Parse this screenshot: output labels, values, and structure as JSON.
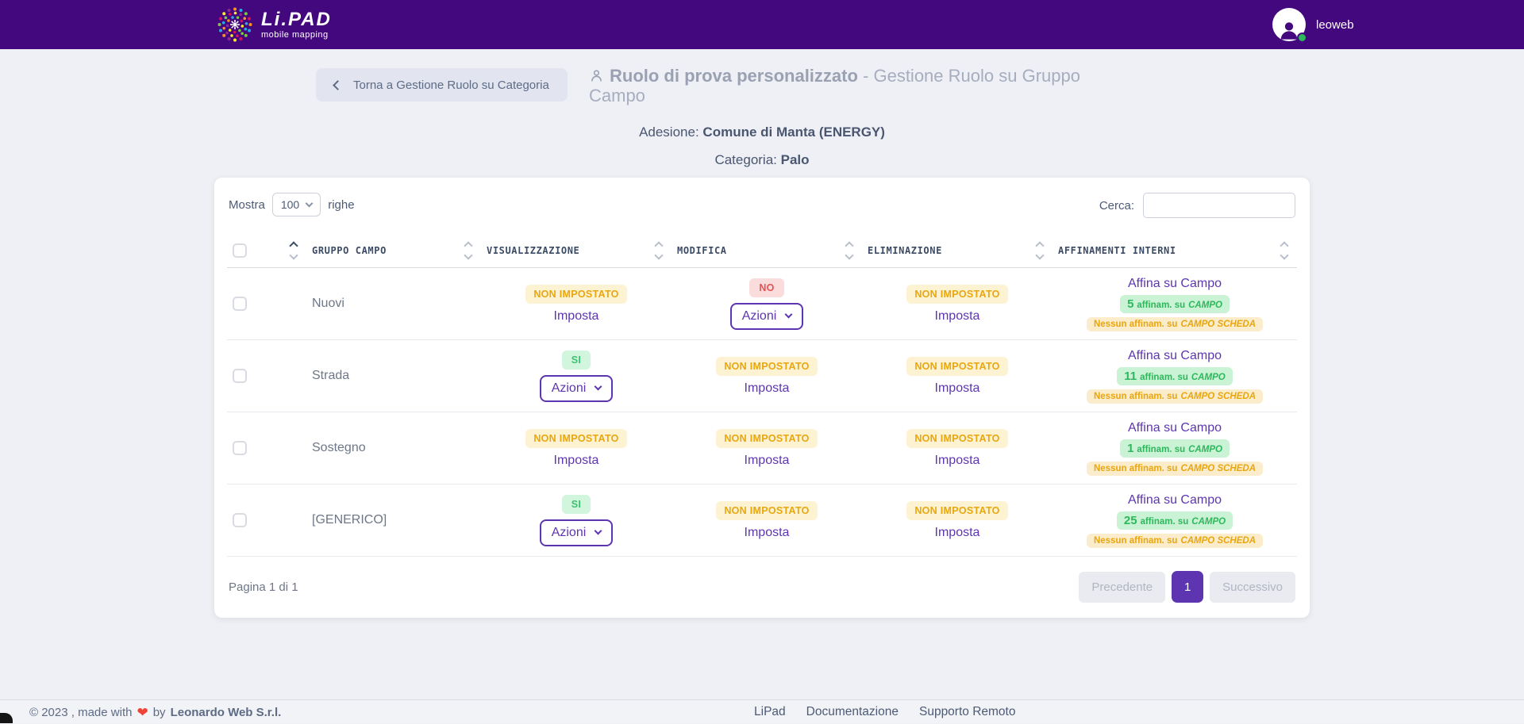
{
  "navbar": {
    "logo_title": "Li.PAD",
    "logo_subtitle": "mobile mapping",
    "username": "leoweb"
  },
  "page": {
    "back_button": "Torna a Gestione Ruolo su Categoria",
    "title_role": "Ruolo di prova personalizzato",
    "title_rest": " - Gestione Ruolo su Gruppo Campo",
    "adesione_label": "Adesione:",
    "adesione_value": "Comune di Manta (ENERGY)",
    "categoria_label": "Categoria:",
    "categoria_value": "Palo"
  },
  "table": {
    "show_label": "Mostra",
    "page_size": "100",
    "rows_label": "righe",
    "search_label": "Cerca:",
    "search_value": "",
    "columns": {
      "gruppo": "GRUPPO CAMPO",
      "visualizzazione": "VISUALIZZAZIONE",
      "modifica": "MODIFICA",
      "eliminazione": "ELIMINAZIONE",
      "affinamenti": "AFFINAMENTI INTERNI"
    },
    "labels": {
      "affinam_link": "Affina su Campo",
      "affinam_suffix": "affinam. su",
      "affinam_target": "CAMPO",
      "no_affinam": "Nessun affinam. su",
      "no_affinam_target": "CAMPO SCHEDA"
    },
    "rows": [
      {
        "name": "Nuovi",
        "vis_status": "NON IMPOSTATO",
        "vis_action": "Imposta",
        "mod_status": "NO",
        "mod_action": "Azioni",
        "del_status": "NON IMPOSTATO",
        "del_action": "Imposta",
        "affinam_count": "5"
      },
      {
        "name": "Strada",
        "vis_status": "SI",
        "vis_action": "Azioni",
        "mod_status": "NON IMPOSTATO",
        "mod_action": "Imposta",
        "del_status": "NON IMPOSTATO",
        "del_action": "Imposta",
        "affinam_count": "11"
      },
      {
        "name": "Sostegno",
        "vis_status": "NON IMPOSTATO",
        "vis_action": "Imposta",
        "mod_status": "NON IMPOSTATO",
        "mod_action": "Imposta",
        "del_status": "NON IMPOSTATO",
        "del_action": "Imposta",
        "affinam_count": "1"
      },
      {
        "name": "[GENERICO]",
        "vis_status": "SI",
        "vis_action": "Azioni",
        "mod_status": "NON IMPOSTATO",
        "mod_action": "Imposta",
        "del_status": "NON IMPOSTATO",
        "del_action": "Imposta",
        "affinam_count": "25"
      }
    ],
    "pagination": {
      "info": "Pagina 1 di 1",
      "prev": "Precedente",
      "current": "1",
      "next": "Successivo"
    }
  },
  "footer": {
    "copyright": "© 2023 , made with",
    "heart": "❤",
    "by": "by",
    "company": "Leonardo Web S.r.l.",
    "links": [
      "LiPad",
      "Documentazione",
      "Supporto Remoto"
    ]
  },
  "colors": {
    "navbar": "#44087e",
    "accent_purple": "#5e35b1",
    "badge_yellow_bg": "#fdf3d3",
    "badge_yellow_text": "#e9a60d",
    "badge_green_bg": "#d2f5dd",
    "badge_green_text": "#3dc370",
    "badge_red_bg": "#fadcdc",
    "badge_red_text": "#e55353",
    "affinam_green_bg": "#c9f3d4",
    "affinam_green_text": "#2eb85c",
    "status_online": "#2eb85c"
  }
}
